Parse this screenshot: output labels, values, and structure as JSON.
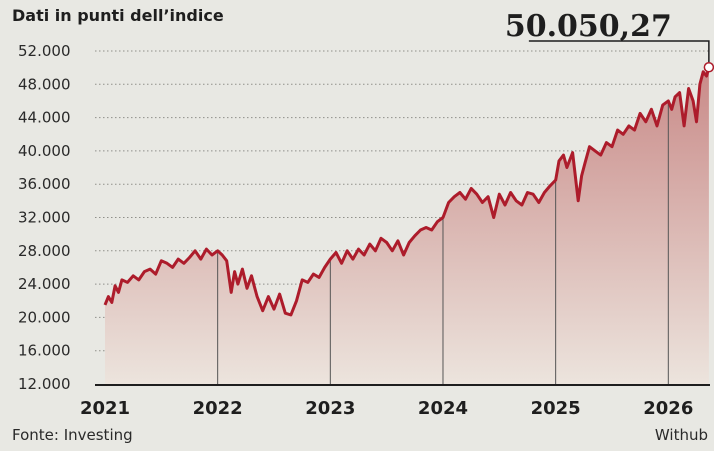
{
  "header": {
    "subtitle": "Dati in punti dell’indice"
  },
  "footer": {
    "source": "Fonte: Investing",
    "brand": "Withub"
  },
  "colors": {
    "line": "#ad1c2b",
    "fill_top": "#c98a88",
    "fill_bottom": "#ece4dd",
    "background": "#e8e8e3"
  },
  "chart_data": {
    "type": "area",
    "title": "",
    "xlabel": "",
    "ylabel": "",
    "ylim": [
      12000,
      52000
    ],
    "yticks": [
      12000,
      16000,
      20000,
      24000,
      28000,
      32000,
      36000,
      40000,
      44000,
      48000,
      52000
    ],
    "ytick_labels": [
      "12.000",
      "16.000",
      "20.000",
      "24.000",
      "28.000",
      "32.000",
      "36.000",
      "40.000",
      "44.000",
      "48.000",
      "52.000"
    ],
    "xlim": [
      2021.0,
      2026.37
    ],
    "xticks": [
      2021,
      2022,
      2023,
      2024,
      2025,
      2026
    ],
    "xtick_labels": [
      "2021",
      "2022",
      "2023",
      "2024",
      "2025",
      "2026"
    ],
    "grid": "horizontal dotted",
    "annotation": {
      "label": "50.050,27",
      "x": 2026.36,
      "y": 50050.27
    },
    "series": [
      {
        "x": [
          2021.0,
          2021.03,
          2021.06,
          2021.09,
          2021.12,
          2021.15,
          2021.2,
          2021.25,
          2021.3,
          2021.35,
          2021.4,
          2021.45,
          2021.5,
          2021.55,
          2021.6,
          2021.65,
          2021.7,
          2021.75,
          2021.8,
          2021.85,
          2021.9,
          2021.95,
          2022.0,
          2022.04,
          2022.08,
          2022.12,
          2022.15,
          2022.18,
          2022.22,
          2022.26,
          2022.3,
          2022.35,
          2022.4,
          2022.45,
          2022.5,
          2022.55,
          2022.6,
          2022.65,
          2022.7,
          2022.75,
          2022.8,
          2022.85,
          2022.9,
          2022.95,
          2023.0,
          2023.05,
          2023.1,
          2023.15,
          2023.2,
          2023.25,
          2023.3,
          2023.35,
          2023.4,
          2023.45,
          2023.5,
          2023.55,
          2023.6,
          2023.65,
          2023.7,
          2023.75,
          2023.8,
          2023.85,
          2023.9,
          2023.95,
          2024.0,
          2024.05,
          2024.1,
          2024.15,
          2024.2,
          2024.25,
          2024.3,
          2024.35,
          2024.4,
          2024.45,
          2024.5,
          2024.55,
          2024.6,
          2024.65,
          2024.7,
          2024.75,
          2024.8,
          2024.85,
          2024.9,
          2024.95,
          2025.0,
          2025.03,
          2025.07,
          2025.1,
          2025.15,
          2025.2,
          2025.23,
          2025.26,
          2025.3,
          2025.35,
          2025.4,
          2025.45,
          2025.5,
          2025.55,
          2025.6,
          2025.65,
          2025.7,
          2025.75,
          2025.8,
          2025.85,
          2025.9,
          2025.95,
          2026.0,
          2026.03,
          2026.06,
          2026.1,
          2026.14,
          2026.18,
          2026.22,
          2026.25,
          2026.28,
          2026.31,
          2026.34,
          2026.36
        ],
        "y": [
          21500,
          22500,
          21800,
          23800,
          23000,
          24500,
          24200,
          25000,
          24500,
          25500,
          25800,
          25200,
          26800,
          26500,
          26000,
          27000,
          26500,
          27200,
          28000,
          27000,
          28200,
          27500,
          28000,
          27500,
          26800,
          23000,
          25500,
          24000,
          25800,
          23500,
          25000,
          22500,
          20800,
          22500,
          21000,
          22800,
          20500,
          20300,
          22000,
          24500,
          24200,
          25200,
          24800,
          26000,
          27000,
          27800,
          26500,
          28000,
          27000,
          28200,
          27500,
          28800,
          28000,
          29500,
          29000,
          28000,
          29200,
          27500,
          29000,
          29800,
          30500,
          30800,
          30500,
          31500,
          32000,
          33800,
          34500,
          35000,
          34200,
          35500,
          34800,
          33800,
          34500,
          32000,
          34800,
          33500,
          35000,
          34000,
          33500,
          35000,
          34800,
          33800,
          35000,
          35800,
          36500,
          38800,
          39500,
          38000,
          39800,
          34000,
          37000,
          38500,
          40500,
          40000,
          39500,
          41000,
          40500,
          42500,
          42000,
          43000,
          42500,
          44500,
          43500,
          45000,
          43000,
          45500,
          46000,
          45000,
          46500,
          47000,
          43000,
          47500,
          46000,
          43500,
          48000,
          49500,
          49000,
          50050.27
        ]
      }
    ]
  }
}
